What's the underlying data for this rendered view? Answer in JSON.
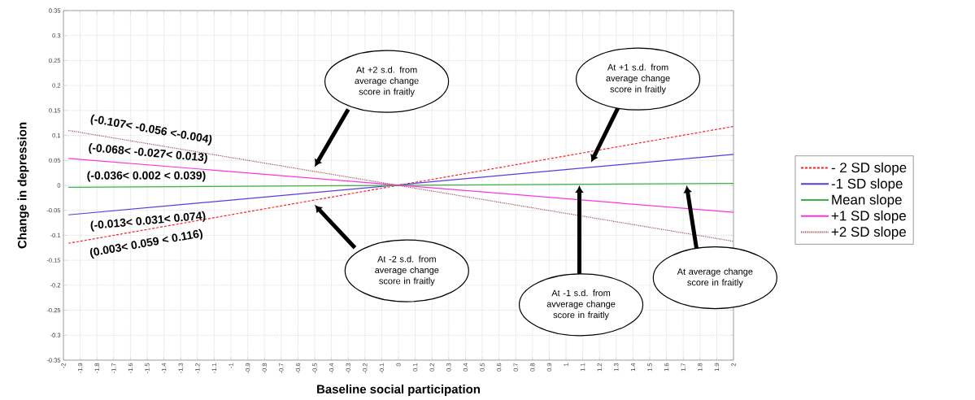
{
  "chart_data": {
    "type": "line",
    "xlabel": "Baseline social participation",
    "ylabel": "Change in depression",
    "xlim": [
      -2,
      2
    ],
    "ylim": [
      -0.35,
      0.35
    ],
    "xticks": [
      -2,
      -1.9,
      -1.8,
      -1.7,
      -1.6,
      -1.5,
      -1.4,
      -1.3,
      -1.2,
      -1.1,
      -1,
      -0.9,
      -0.8,
      -0.7,
      -0.6,
      -0.5,
      -0.4,
      -0.3,
      -0.2,
      -0.1,
      0,
      0.1,
      0.2,
      0.3,
      0.4,
      0.5,
      0.6,
      0.7,
      0.8,
      0.9,
      1,
      1.1,
      1.2,
      1.3,
      1.4,
      1.5,
      1.6,
      1.7,
      1.8,
      1.9,
      2
    ],
    "yticks": [
      -0.35,
      -0.3,
      -0.25,
      -0.2,
      -0.15,
      -0.1,
      -0.05,
      0,
      0.05,
      0.1,
      0.15,
      0.2,
      0.25,
      0.3,
      0.35
    ],
    "grid": true,
    "legend": "right",
    "marker": "none",
    "x": [
      -1.97,
      2
    ],
    "series": [
      {
        "name": "- 2 SD slope",
        "color": "#ff2020",
        "line_style": "dashed",
        "values": [
          -0.116,
          0.118
        ]
      },
      {
        "name": "-1 SD slope",
        "color": "#5a3adf",
        "line_style": "solid",
        "values": [
          -0.059,
          0.062
        ]
      },
      {
        "name": "Mean slope",
        "color": "#3cb043",
        "line_style": "solid",
        "values": [
          -0.004,
          0.004
        ]
      },
      {
        "name": "+1 SD slope",
        "color": "#ff33dd",
        "line_style": "solid",
        "values": [
          0.054,
          -0.054
        ]
      },
      {
        "name": "+2 SD slope",
        "color": "#a05050",
        "line_style": "dotted",
        "values": [
          0.11,
          -0.112
        ]
      }
    ],
    "annotations": [
      "(-0.107< -0.056 <-0.004)",
      "(-0.068< -0.027< 0.013)",
      "(-0.036< 0.002 < 0.039)",
      "(-0.013< 0.031< 0.074)",
      "(0.003< 0.059 < 0.116)",
      "At +2 s.d. from average change score in fraitly",
      "At +1 s.d. from average change score in fraitly",
      "At -2 s.d. from average change score in fraitly",
      "At -1 s.d. from avverage change score in fraitly",
      "At average change score in fraitly"
    ]
  }
}
